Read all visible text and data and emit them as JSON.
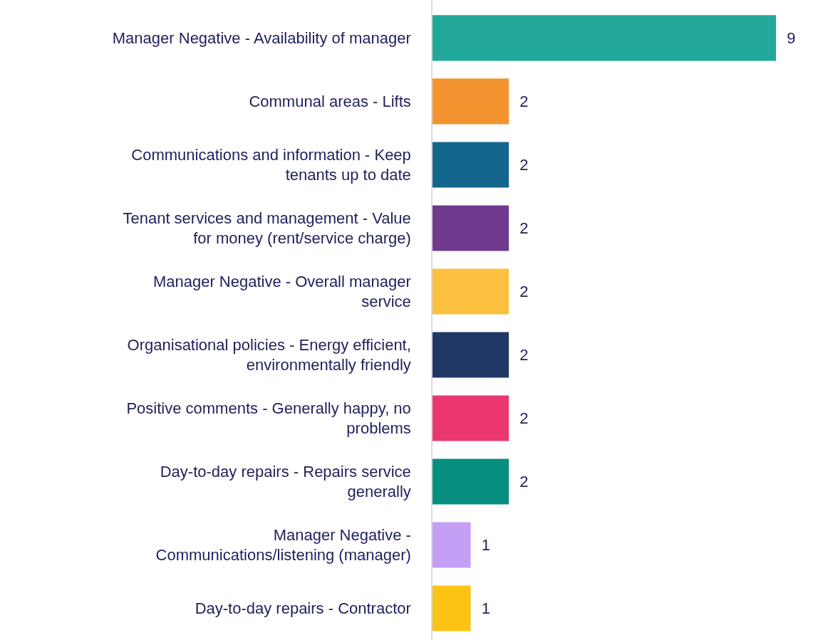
{
  "chart_data": {
    "type": "bar",
    "orientation": "horizontal",
    "data_labels": true,
    "categories": [
      "Manager Negative - Availability of manager",
      "Communal areas - Lifts",
      "Communications and information - Keep\ntenants up to date",
      "Tenant services and management - Value\nfor money (rent/service charge)",
      "Manager Negative - Overall manager\nservice",
      "Organisational policies - Energy efficient,\nenvironmentally friendly",
      "Positive comments - Generally happy, no\nproblems",
      "Day-to-day repairs - Repairs service\ngenerally",
      "Manager Negative -\nCommunications/listening (manager)",
      "Day-to-day repairs - Contractor"
    ],
    "values": [
      9,
      2,
      2,
      2,
      2,
      2,
      2,
      2,
      1,
      1
    ],
    "colors": [
      "#22a899",
      "#f39430",
      "#14668c",
      "#6f3a8d",
      "#fdc03f",
      "#203864",
      "#ea3770",
      "#068e80",
      "#c49ff5",
      "#fcc314"
    ],
    "xlim": [
      0,
      10.1
    ],
    "legend": false
  }
}
